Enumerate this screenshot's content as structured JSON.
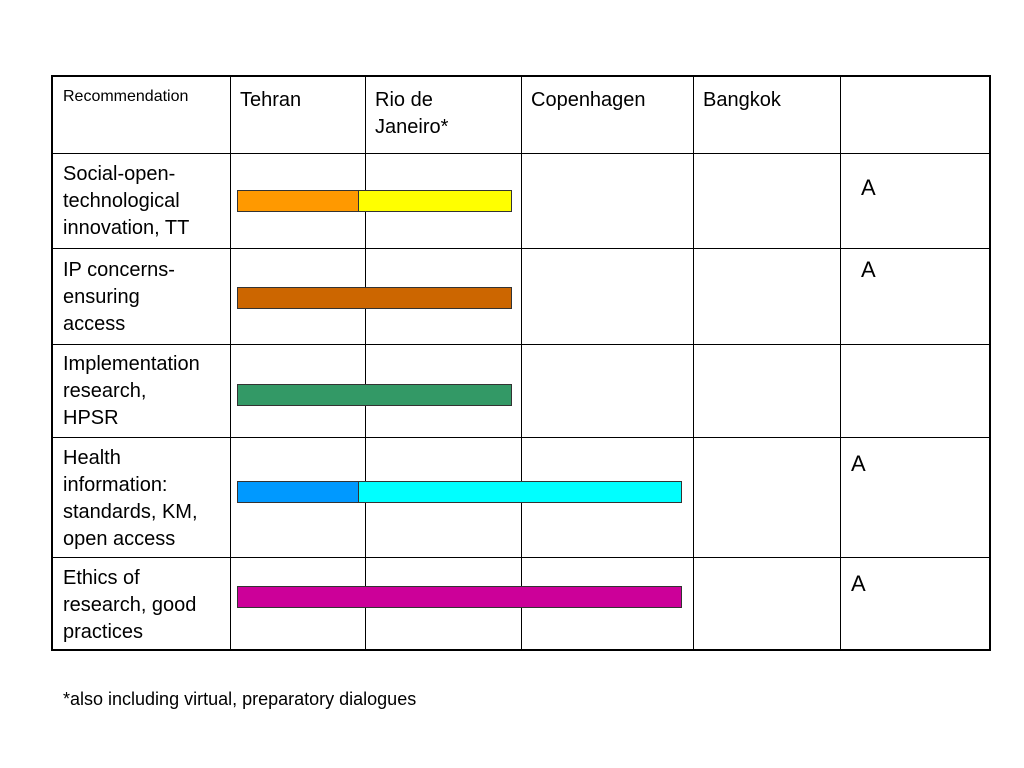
{
  "columns": {
    "recommendation": "Recommendation",
    "tehran": "Tehran",
    "rio": "Rio de\nJaneiro*",
    "copenhagen": "Copenhagen",
    "bangkok": "Bangkok",
    "last": ""
  },
  "rows": [
    {
      "label": "Social-open-\ntechnological\ninnovation, TT",
      "mark": "A",
      "segments": [
        {
          "from": "Tehran",
          "to": "Tehran-mid",
          "color": "#FF9900"
        },
        {
          "from": "Tehran-mid",
          "to": "Rio de Janeiro*",
          "color": "#FFFF00"
        }
      ]
    },
    {
      "label": "IP concerns-\nensuring\naccess",
      "mark": "A",
      "segments": [
        {
          "from": "Tehran",
          "to": "Rio de Janeiro*",
          "color": "#CC6600"
        }
      ]
    },
    {
      "label": "Implementation\nresearch,\nHPSR",
      "mark": "",
      "segments": [
        {
          "from": "Tehran",
          "to": "Rio de Janeiro*",
          "color": "#339966"
        }
      ]
    },
    {
      "label": "Health\ninformation:\nstandards, KM,\nopen access",
      "mark": "A",
      "segments": [
        {
          "from": "Tehran",
          "to": "Tehran-mid",
          "color": "#0099FF"
        },
        {
          "from": "Tehran-mid",
          "to": "Copenhagen",
          "color": "#00FFFF"
        }
      ]
    },
    {
      "label": "Ethics of\nresearch, good\npractices",
      "mark": "A",
      "segments": [
        {
          "from": "Tehran",
          "to": "Copenhagen",
          "color": "#CC0099"
        }
      ]
    }
  ],
  "footnote": "*also including virtual, preparatory dialogues"
}
